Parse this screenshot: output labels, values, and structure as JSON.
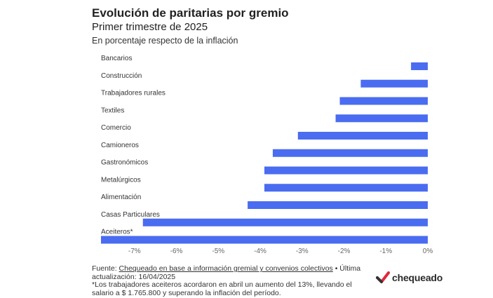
{
  "header": {
    "title": "Evolución de paritarias por gremio",
    "subtitle": "Primer trimestre de 2025",
    "description": "En porcentaje respecto de la inflación"
  },
  "chart_data": {
    "type": "bar",
    "orientation": "horizontal",
    "categories": [
      "Bancarios",
      "Construcción",
      "Trabajadores rurales",
      "Textiles",
      "Comercio",
      "Camioneros",
      "Gastronómicos",
      "Metalúrgicos",
      "Alimentación",
      "Casas Particulares",
      "Aceiteros*"
    ],
    "values": [
      -0.4,
      -1.6,
      -2.1,
      -2.2,
      -3.1,
      -3.7,
      -3.9,
      -3.9,
      -4.3,
      -6.8,
      -7.8
    ],
    "xlim": [
      -7.8,
      0
    ],
    "xticks": [
      -7,
      -6,
      -5,
      -4,
      -3,
      -2,
      -1,
      0
    ],
    "xtick_labels": [
      "-7%",
      "-6%",
      "-5%",
      "-4%",
      "-3%",
      "-2%",
      "-1%",
      "0%"
    ],
    "bar_color": "#4a6cf0",
    "grid": false
  },
  "footer": {
    "source_prefix": "Fuente: ",
    "source_link": "Chequeado en base a información gremial y convenios colectivos",
    "source_suffix": " • Última actualización: 16/04/2025",
    "note": "*Los trabajadores aceiteros acordaron en abril un aumento del 13%, llevando el salario a $ 1.765.800 y superando la inflación del período."
  },
  "logo": {
    "text": "chequeado",
    "mark_color": "#e0283a",
    "mark_color_dark": "#333333"
  }
}
